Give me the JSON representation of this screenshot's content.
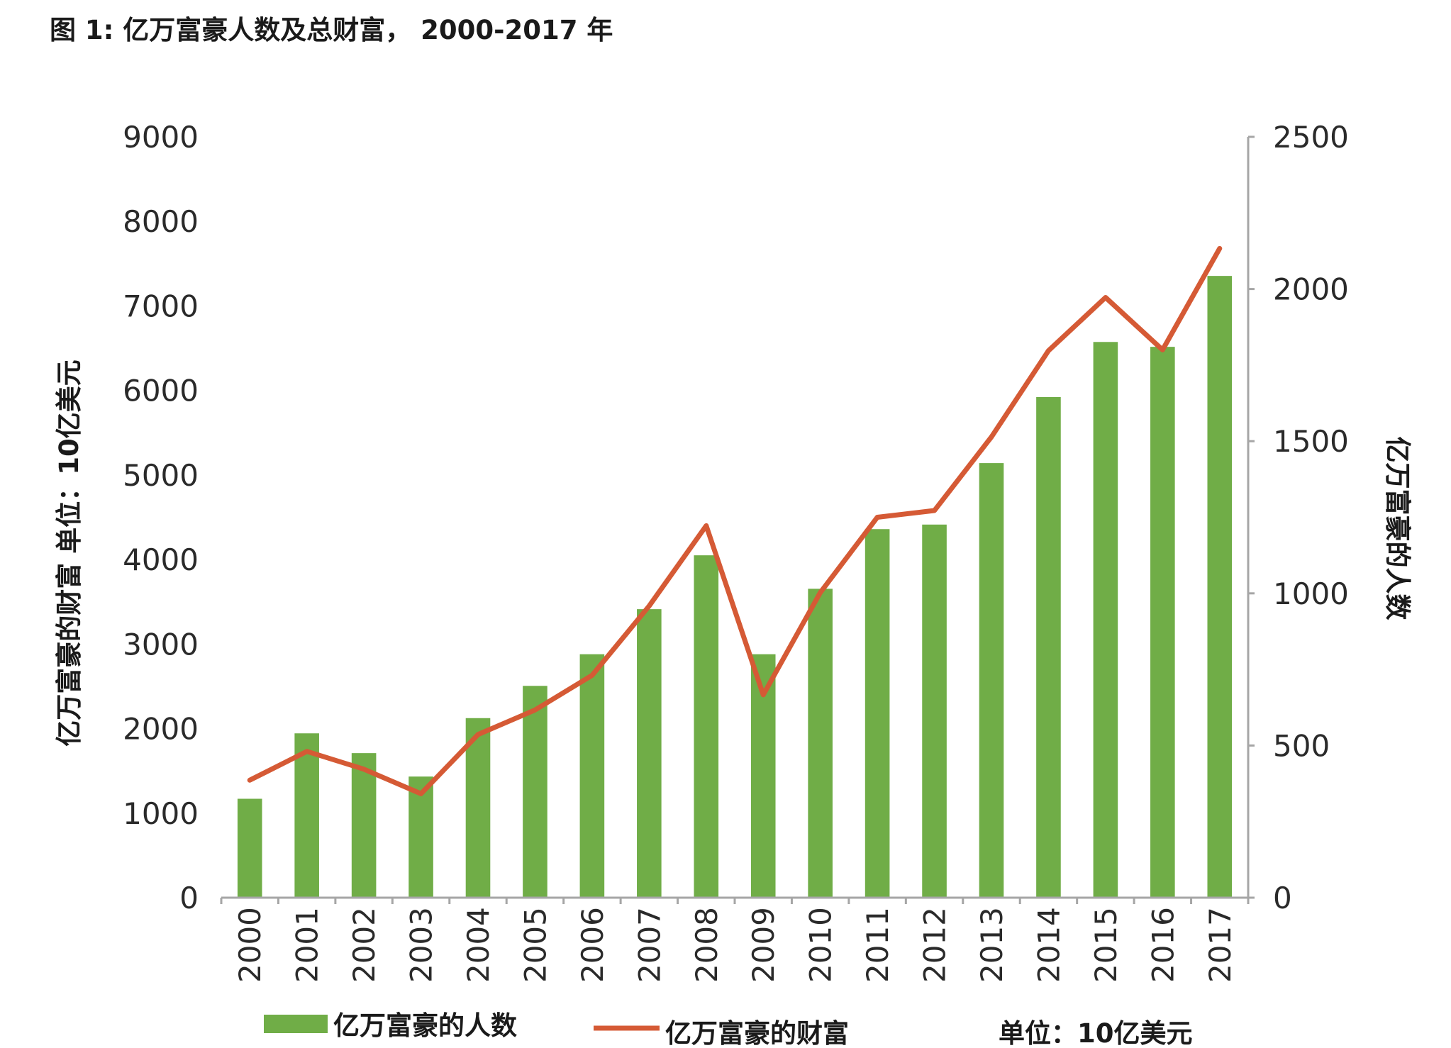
{
  "title": "图 1: 亿万富豪人数及总财富， 2000-2017 年",
  "colors": {
    "bars": "#70ad47",
    "line": "#d55a35",
    "axis": "#a6a6a6"
  },
  "chart_data": {
    "type": "bar",
    "categories": [
      "2000",
      "2001",
      "2002",
      "2003",
      "2004",
      "2005",
      "2006",
      "2007",
      "2008",
      "2009",
      "2010",
      "2011",
      "2012",
      "2013",
      "2014",
      "2015",
      "2016",
      "2017"
    ],
    "series": [
      {
        "name": "亿万富豪的人数",
        "type": "bar",
        "axis": "right",
        "values": [
          325,
          540,
          475,
          398,
          590,
          696,
          800,
          948,
          1125,
          800,
          1015,
          1211,
          1226,
          1428,
          1645,
          1826,
          1810,
          2043
        ]
      },
      {
        "name": "亿万富豪的财富",
        "type": "line",
        "axis": "left",
        "values": [
          1390,
          1730,
          1520,
          1230,
          1930,
          2220,
          2630,
          3450,
          4400,
          2400,
          3610,
          4500,
          4580,
          5450,
          6470,
          7100,
          6480,
          7680
        ]
      }
    ],
    "y_left": {
      "label": "亿万富豪的财富  单位：10亿美元",
      "ylim": [
        0,
        9000
      ],
      "ticks": [
        "0",
        "1000",
        "2000",
        "3000",
        "4000",
        "5000",
        "6000",
        "7000",
        "8000",
        "9000"
      ]
    },
    "y_right": {
      "label": "亿万富豪的人数",
      "ylim": [
        0,
        2500
      ],
      "ticks": [
        "0",
        "500",
        "1000",
        "1500",
        "2000",
        "2500"
      ]
    },
    "legend": {
      "position": "bottom",
      "unit_note": "单位：10亿美元"
    },
    "grid": false
  }
}
